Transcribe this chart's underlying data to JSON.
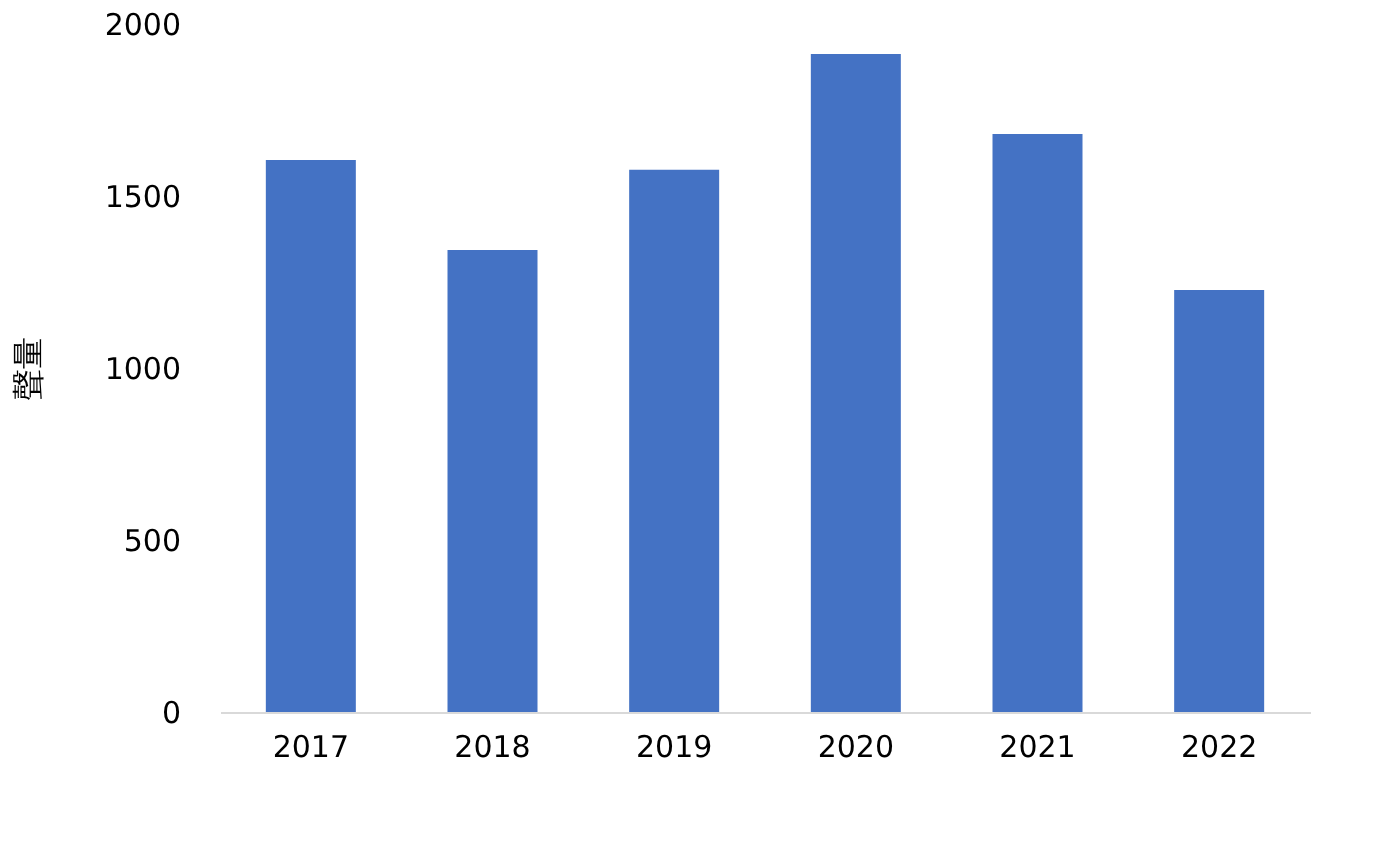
{
  "chart_data": {
    "type": "bar",
    "ylabel": "聲量",
    "categories": [
      "2017",
      "2018",
      "2019",
      "2020",
      "2021",
      "2022"
    ],
    "values": [
      1605,
      1343,
      1576,
      1913,
      1680,
      1227
    ],
    "color": "#4472c4",
    "ylim": [
      0,
      2000
    ],
    "yticks": [
      0,
      500,
      1000,
      1500,
      2000
    ],
    "grid": false
  }
}
